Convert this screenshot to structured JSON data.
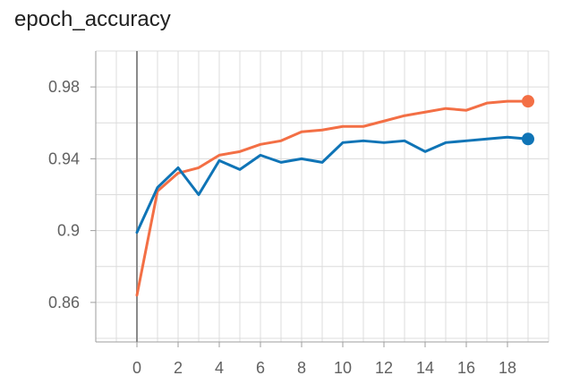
{
  "chart_data": {
    "type": "line",
    "title": "epoch_accuracy",
    "xlabel": "",
    "ylabel": "",
    "x_ticks": [
      0,
      2,
      4,
      6,
      8,
      10,
      12,
      14,
      16,
      18
    ],
    "y_ticks": [
      0.86,
      0.9,
      0.94,
      0.98
    ],
    "y_tick_labels": [
      "0.86",
      "0.9",
      "0.94",
      "0.98"
    ],
    "xlim": [
      -2,
      20
    ],
    "ylim": [
      0.838,
      1.0
    ],
    "grid": true,
    "legend": false,
    "x": [
      0,
      1,
      2,
      3,
      4,
      5,
      6,
      7,
      8,
      9,
      10,
      11,
      12,
      13,
      14,
      15,
      16,
      17,
      18,
      19
    ],
    "series": [
      {
        "color": "#f36f45",
        "values": [
          0.864,
          0.922,
          0.932,
          0.935,
          0.942,
          0.944,
          0.948,
          0.95,
          0.955,
          0.956,
          0.958,
          0.958,
          0.961,
          0.964,
          0.966,
          0.968,
          0.967,
          0.971,
          0.972,
          0.972
        ]
      },
      {
        "color": "#0f74b6",
        "values": [
          0.899,
          0.924,
          0.935,
          0.92,
          0.939,
          0.934,
          0.942,
          0.938,
          0.94,
          0.938,
          0.949,
          0.95,
          0.949,
          0.95,
          0.944,
          0.949,
          0.95,
          0.951,
          0.952,
          0.951
        ]
      }
    ]
  }
}
